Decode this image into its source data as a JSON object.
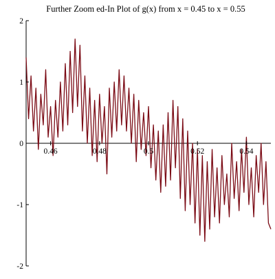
{
  "chart_data": {
    "type": "line",
    "title": "Further Zoom ed-In Plot of g(x) from x = 0.45 to x = 0.55",
    "xlabel": "",
    "ylabel": "",
    "xlim": [
      0.45,
      0.55
    ],
    "ylim": [
      -2,
      2
    ],
    "x_ticks": [
      0.46,
      0.48,
      0.5,
      0.52,
      0.54
    ],
    "x_tick_labels": [
      "0.46",
      "0.48",
      "0.5",
      "0.52",
      "0.54"
    ],
    "y_ticks": [
      -2,
      -1,
      0,
      1,
      2
    ],
    "y_tick_labels": [
      "-2",
      "-1",
      "0",
      "1",
      "2"
    ],
    "grid": false,
    "color": "#7b0b15",
    "series": [
      {
        "x": [
          0.45,
          0.451,
          0.452,
          0.453,
          0.454,
          0.455,
          0.456,
          0.457,
          0.458,
          0.459,
          0.46,
          0.461,
          0.462,
          0.463,
          0.464,
          0.465,
          0.466,
          0.467,
          0.468,
          0.469,
          0.47,
          0.471,
          0.472,
          0.473,
          0.474,
          0.475,
          0.476,
          0.477,
          0.478,
          0.479,
          0.48,
          0.481,
          0.482,
          0.483,
          0.484,
          0.485,
          0.486,
          0.487,
          0.488,
          0.489,
          0.49,
          0.491,
          0.492,
          0.493,
          0.494,
          0.495,
          0.496,
          0.497,
          0.498,
          0.499,
          0.5,
          0.501,
          0.502,
          0.503,
          0.504,
          0.505,
          0.506,
          0.507,
          0.508,
          0.509,
          0.51,
          0.511,
          0.512,
          0.513,
          0.514,
          0.515,
          0.516,
          0.517,
          0.518,
          0.519,
          0.52,
          0.521,
          0.522,
          0.523,
          0.524,
          0.525,
          0.526,
          0.527,
          0.528,
          0.529,
          0.53,
          0.531,
          0.532,
          0.533,
          0.534,
          0.535,
          0.536,
          0.537,
          0.538,
          0.539,
          0.54,
          0.541,
          0.542,
          0.543,
          0.544,
          0.545,
          0.546,
          0.547,
          0.548,
          0.549,
          0.55
        ],
        "y": [
          1.4,
          0.4,
          1.1,
          0.2,
          0.9,
          -0.1,
          0.8,
          0.3,
          1.2,
          0.1,
          0.6,
          -0.2,
          0.7,
          0.1,
          1.0,
          0.2,
          1.3,
          0.3,
          1.5,
          0.5,
          1.7,
          0.6,
          1.6,
          0.2,
          1.1,
          0.0,
          0.9,
          -0.2,
          0.7,
          -0.3,
          0.8,
          0.0,
          0.6,
          -0.5,
          0.9,
          0.1,
          1.0,
          0.2,
          1.2,
          0.3,
          1.1,
          0.2,
          0.9,
          0.0,
          0.8,
          -0.3,
          0.7,
          -0.1,
          0.5,
          -0.2,
          0.6,
          -0.4,
          0.3,
          -0.6,
          0.2,
          -0.8,
          0.3,
          -0.7,
          0.5,
          -0.6,
          0.7,
          -0.4,
          0.6,
          -0.9,
          0.4,
          -1.1,
          0.2,
          -1.0,
          0.0,
          -1.3,
          -0.1,
          -1.5,
          -0.2,
          -1.6,
          -0.3,
          -1.4,
          -0.1,
          -1.2,
          -0.4,
          -1.3,
          -0.2,
          -1.0,
          -0.5,
          -1.2,
          0.0,
          -0.9,
          -0.3,
          -1.1,
          -0.1,
          -0.8,
          0.1,
          -1.0,
          -0.4,
          -1.2,
          -0.2,
          -0.8,
          0.0,
          -1.0,
          -0.3,
          -1.3,
          -1.4
        ]
      }
    ]
  }
}
